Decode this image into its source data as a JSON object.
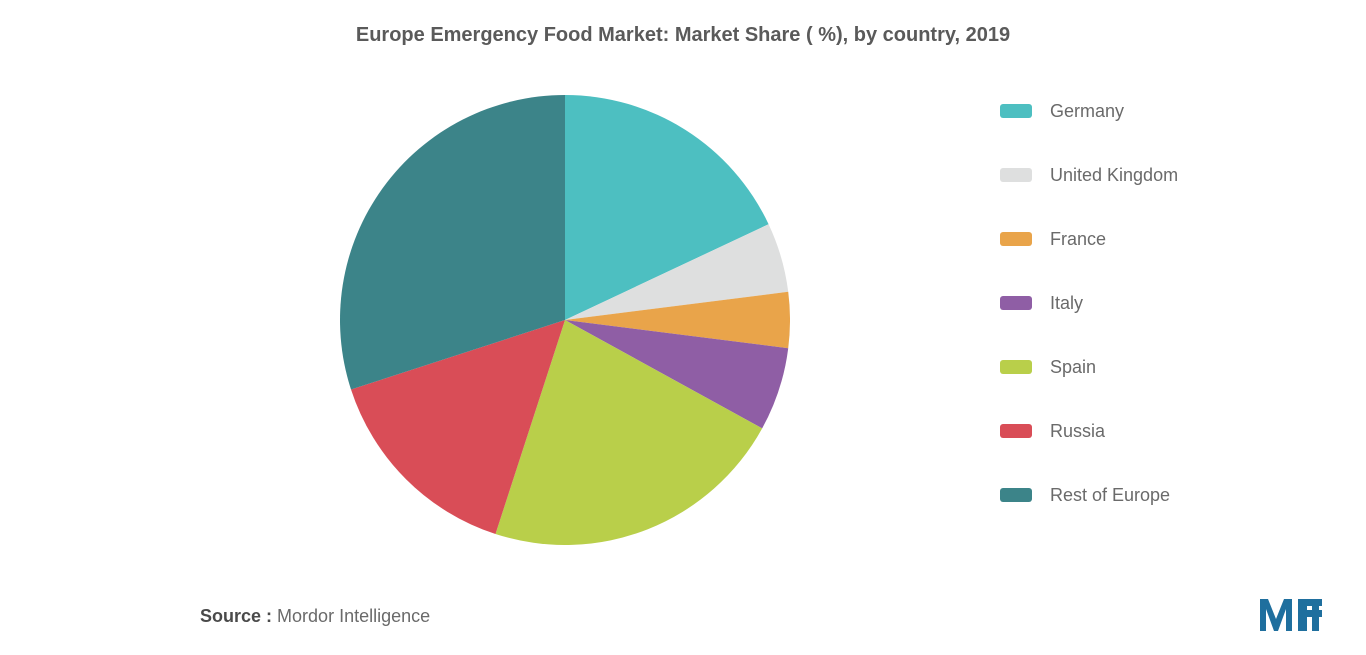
{
  "chart": {
    "type": "pie",
    "title": "Europe Emergency Food Market: Market Share ( %), by country, 2019",
    "title_fontsize": 20,
    "title_color": "#5a5a5a",
    "title_weight": "bold",
    "background_color": "#ffffff",
    "radius": 225,
    "start_angle_deg": -90,
    "direction": "clockwise",
    "slices": [
      {
        "label": "Germany",
        "value": 18,
        "color": "#4dbfc1"
      },
      {
        "label": "United Kingdom",
        "value": 5,
        "color": "#dedfdf"
      },
      {
        "label": "France",
        "value": 4,
        "color": "#e9a44a"
      },
      {
        "label": "Italy",
        "value": 6,
        "color": "#8f5ea5"
      },
      {
        "label": "Spain",
        "value": 22,
        "color": "#b9cf4a"
      },
      {
        "label": "Russia",
        "value": 15,
        "color": "#d94d57"
      },
      {
        "label": "Rest of Europe",
        "value": 30,
        "color": "#3c8489"
      }
    ],
    "legend": {
      "position": "right",
      "fontsize": 18,
      "text_color": "#6a6a6a",
      "swatch_width": 32,
      "swatch_height": 14,
      "item_gap": 32
    }
  },
  "source": {
    "label": "Source :",
    "value": "Mordor Intelligence",
    "fontsize": 18,
    "label_color": "#4a4a4a",
    "value_color": "#6a6a6a"
  },
  "logo": {
    "text": "MI",
    "color": "#1f6f9e"
  }
}
